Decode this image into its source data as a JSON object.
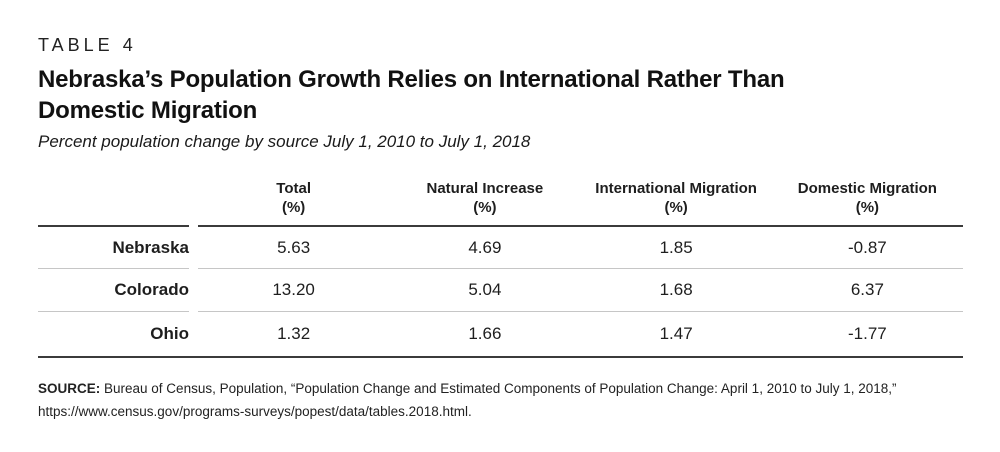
{
  "table_label": "TABLE 4",
  "title_line1": "Nebraska’s Population Growth Relies on International Rather Than",
  "title_line2": "Domestic Migration",
  "subtitle": "Percent population change by source July 1, 2010 to July 1, 2018",
  "table": {
    "columns": [
      {
        "label": "Total",
        "unit": "(%)"
      },
      {
        "label": "Natural Increase",
        "unit": "(%)"
      },
      {
        "label": "International Migration",
        "unit": "(%)"
      },
      {
        "label": "Domestic Migration",
        "unit": "(%)"
      }
    ],
    "rows": [
      {
        "label": "Nebraska",
        "values": [
          "5.63",
          "4.69",
          "1.85",
          "-0.87"
        ]
      },
      {
        "label": "Colorado",
        "values": [
          "13.20",
          "5.04",
          "1.68",
          "6.37"
        ]
      },
      {
        "label": "Ohio",
        "values": [
          "1.32",
          "1.66",
          "1.47",
          "-1.77"
        ]
      }
    ]
  },
  "source": {
    "label": "SOURCE:",
    "text": " Bureau of Census, Population, “Population Change and Estimated Components of Population Change: April 1, 2010 to July 1, 2018,”",
    "url_line": "https://www.census.gov/programs-surveys/popest/data/tables.2018.html."
  },
  "colors": {
    "thick_rule": "#3b3b3b",
    "thin_rule": "#c6c6c6",
    "text": "#1a1a1a",
    "background": "#ffffff"
  }
}
